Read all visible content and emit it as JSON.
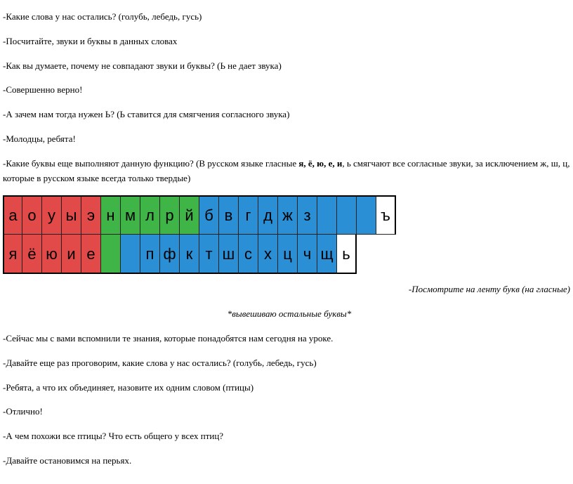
{
  "p1": "-Какие слова у нас остались? (голубь, лебедь, гусь)",
  "p2": "-Посчитайте, звуки и буквы в данных словах",
  "p3": "-Как вы думаете, почему не совпадают звуки и буквы? (Ь не дает звука)",
  "p4": "-Совершенно верно!",
  "p5": "-А зачем нам тогда нужен Ь? (Ь ставится для смягчения согласного звука)",
  "p6": "-Молодцы, ребята!",
  "p7a": "-Какие буквы еще выполняют данную функцию? (В русском языке гласные ",
  "p7b": "я, ё, ю, е, и",
  "p7c": ", ь смягчают все согласные звуки, за исключением ж, ш, ц, которые в русском языке всегда только твердые)",
  "tape": {
    "row1": [
      {
        "t": "а",
        "c": "red"
      },
      {
        "t": "о",
        "c": "red"
      },
      {
        "t": "у",
        "c": "red"
      },
      {
        "t": "ы",
        "c": "red"
      },
      {
        "t": "э",
        "c": "red"
      },
      {
        "t": "н",
        "c": "grn"
      },
      {
        "t": "м",
        "c": "grn"
      },
      {
        "t": "л",
        "c": "grn"
      },
      {
        "t": "р",
        "c": "grn"
      },
      {
        "t": "й",
        "c": "grn"
      },
      {
        "t": "б",
        "c": "blu"
      },
      {
        "t": "в",
        "c": "blu"
      },
      {
        "t": "г",
        "c": "blu"
      },
      {
        "t": "д",
        "c": "blu"
      },
      {
        "t": "ж",
        "c": "blu"
      },
      {
        "t": "з",
        "c": "blu"
      },
      {
        "t": "",
        "c": "blu"
      },
      {
        "t": "",
        "c": "blu"
      },
      {
        "t": "",
        "c": "blu"
      },
      {
        "t": "ъ",
        "c": "wht"
      }
    ],
    "row2": [
      {
        "t": "я",
        "c": "red"
      },
      {
        "t": "ё",
        "c": "red"
      },
      {
        "t": "ю",
        "c": "red"
      },
      {
        "t": "и",
        "c": "red"
      },
      {
        "t": "е",
        "c": "red"
      },
      {
        "t": "",
        "c": "grn"
      },
      {
        "t": "",
        "c": "blu"
      },
      {
        "t": "п",
        "c": "blu"
      },
      {
        "t": "ф",
        "c": "blu"
      },
      {
        "t": "к",
        "c": "blu"
      },
      {
        "t": "т",
        "c": "blu"
      },
      {
        "t": "ш",
        "c": "blu"
      },
      {
        "t": "с",
        "c": "blu"
      },
      {
        "t": "х",
        "c": "blu"
      },
      {
        "t": "ц",
        "c": "blu"
      },
      {
        "t": "ч",
        "c": "blu"
      },
      {
        "t": "щ",
        "c": "blu"
      },
      {
        "t": "ь",
        "c": "wht"
      }
    ]
  },
  "p8": "-Посмотрите на ленту букв (на гласные)",
  "p9": "*вывешиваю остальные буквы*",
  "p10": "-Сейчас мы с вами вспомнили те знания, которые понадобятся нам сегодня на уроке.",
  "p11": "-Давайте еще раз проговорим, какие слова у нас остались? (голубь, лебедь, гусь)",
  "p12": "-Ребята, а что их объединяет, назовите их одним словом (птицы)",
  "p13": "-Отлично!",
  "p14": "-А чем похожи все птицы? Что есть общего у всех птиц?",
  "p15": "-Давайте остановимся на перьях."
}
